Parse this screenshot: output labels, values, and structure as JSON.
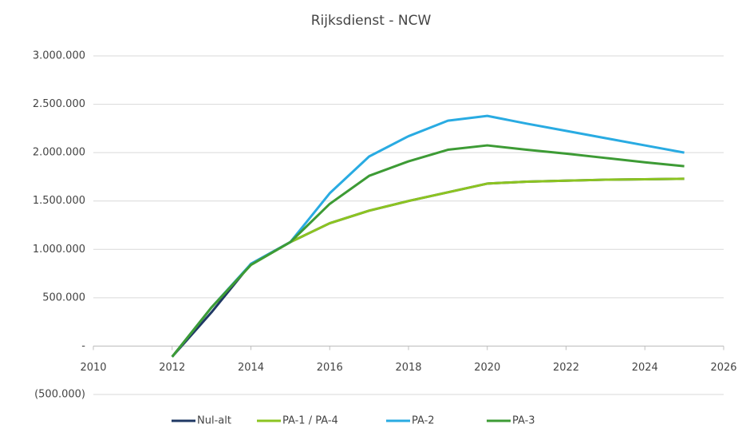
{
  "chart_data": {
    "type": "line",
    "title": "Rijksdienst - NCW",
    "x": [
      2012,
      2013,
      2014,
      2015,
      2016,
      2017,
      2018,
      2019,
      2020,
      2021,
      2022,
      2023,
      2024,
      2025
    ],
    "series": [
      {
        "name": "Nul-alt",
        "color": "#1f3864",
        "values": [
          -110000,
          350000,
          850000,
          1075000,
          1270000,
          1400000,
          1500000,
          1590000,
          1680000,
          1700000,
          1710000,
          1720000,
          1725000,
          1730000
        ]
      },
      {
        "name": "PA-1 / PA-4",
        "color": "#8cc421",
        "values": [
          -110000,
          400000,
          840000,
          1075000,
          1270000,
          1400000,
          1500000,
          1590000,
          1680000,
          1700000,
          1710000,
          1720000,
          1725000,
          1730000
        ]
      },
      {
        "name": "PA-2",
        "color": "#29abe2",
        "values": [
          -110000,
          400000,
          850000,
          1075000,
          1580000,
          1960000,
          2170000,
          2330000,
          2380000,
          2300000,
          2225000,
          2150000,
          2075000,
          2000000
        ]
      },
      {
        "name": "PA-3",
        "color": "#3d9b35",
        "values": [
          -110000,
          400000,
          840000,
          1075000,
          1470000,
          1760000,
          1910000,
          2030000,
          2075000,
          2030000,
          1990000,
          1945000,
          1900000,
          1860000
        ]
      }
    ],
    "xlim": [
      2010,
      2026
    ],
    "xticks": [
      2010,
      2012,
      2014,
      2016,
      2018,
      2020,
      2022,
      2024,
      2026
    ],
    "ylim": [
      -500000,
      3000000
    ],
    "yticks": [
      {
        "value": -500000,
        "label": "(500.000)"
      },
      {
        "value": 0,
        "label": "-"
      },
      {
        "value": 500000,
        "label": "500.000"
      },
      {
        "value": 1000000,
        "label": "1.000.000"
      },
      {
        "value": 1500000,
        "label": "1.500.000"
      },
      {
        "value": 2000000,
        "label": "2.000.000"
      },
      {
        "value": 2500000,
        "label": "2.500.000"
      },
      {
        "value": 3000000,
        "label": "3.000.000"
      }
    ],
    "grid": true,
    "legend": "bottom"
  }
}
